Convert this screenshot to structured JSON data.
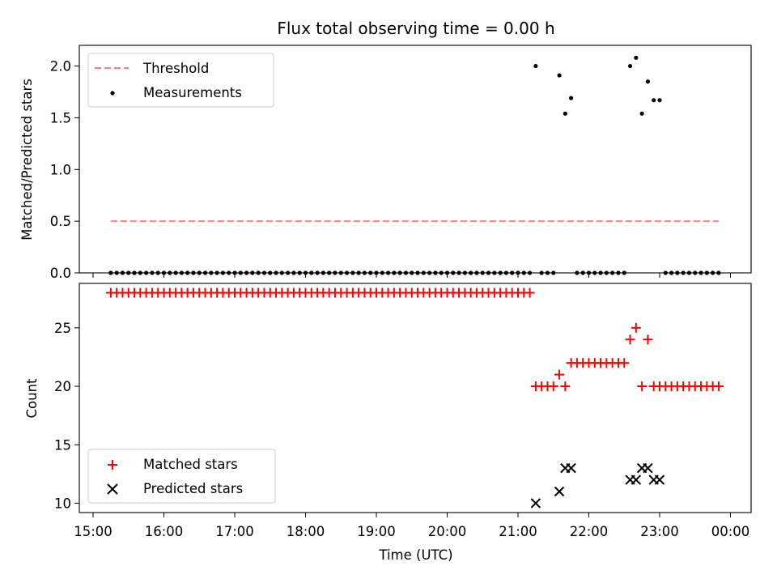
{
  "chart_data": [
    {
      "type": "scatter",
      "panel": "top",
      "title": "Flux total observing time = 0.00 h",
      "ylabel": "Matched/Predicted stars",
      "xlabel": "",
      "ylim": [
        0,
        2.2
      ],
      "yticks": [
        "0.0",
        "0.5",
        "1.0",
        "1.5",
        "2.0"
      ],
      "legend": {
        "placement": "top-left",
        "entries": [
          "Threshold",
          "Measurements"
        ]
      },
      "grid": false,
      "threshold": {
        "name": "Threshold",
        "value": 0.5,
        "x_range": [
          "15:15",
          "23:50"
        ],
        "color": "#ff7f7f",
        "style": "dashed"
      },
      "series": [
        {
          "name": "Measurements",
          "color": "#000000",
          "marker": "dot",
          "points": [
            [
              "15:15",
              0
            ],
            [
              "15:20",
              0
            ],
            [
              "15:25",
              0
            ],
            [
              "15:30",
              0
            ],
            [
              "15:35",
              0
            ],
            [
              "15:40",
              0
            ],
            [
              "15:45",
              0
            ],
            [
              "15:50",
              0
            ],
            [
              "15:55",
              0
            ],
            [
              "16:00",
              0
            ],
            [
              "16:05",
              0
            ],
            [
              "16:10",
              0
            ],
            [
              "16:15",
              0
            ],
            [
              "16:20",
              0
            ],
            [
              "16:25",
              0
            ],
            [
              "16:30",
              0
            ],
            [
              "16:35",
              0
            ],
            [
              "16:40",
              0
            ],
            [
              "16:45",
              0
            ],
            [
              "16:50",
              0
            ],
            [
              "16:55",
              0
            ],
            [
              "17:00",
              0
            ],
            [
              "17:05",
              0
            ],
            [
              "17:10",
              0
            ],
            [
              "17:15",
              0
            ],
            [
              "17:20",
              0
            ],
            [
              "17:25",
              0
            ],
            [
              "17:30",
              0
            ],
            [
              "17:35",
              0
            ],
            [
              "17:40",
              0
            ],
            [
              "17:45",
              0
            ],
            [
              "17:50",
              0
            ],
            [
              "17:55",
              0
            ],
            [
              "18:00",
              0
            ],
            [
              "18:05",
              0
            ],
            [
              "18:10",
              0
            ],
            [
              "18:15",
              0
            ],
            [
              "18:20",
              0
            ],
            [
              "18:25",
              0
            ],
            [
              "18:30",
              0
            ],
            [
              "18:35",
              0
            ],
            [
              "18:40",
              0
            ],
            [
              "18:45",
              0
            ],
            [
              "18:50",
              0
            ],
            [
              "18:55",
              0
            ],
            [
              "19:00",
              0
            ],
            [
              "19:05",
              0
            ],
            [
              "19:10",
              0
            ],
            [
              "19:15",
              0
            ],
            [
              "19:20",
              0
            ],
            [
              "19:25",
              0
            ],
            [
              "19:30",
              0
            ],
            [
              "19:35",
              0
            ],
            [
              "19:40",
              0
            ],
            [
              "19:45",
              0
            ],
            [
              "19:50",
              0
            ],
            [
              "19:55",
              0
            ],
            [
              "20:00",
              0
            ],
            [
              "20:05",
              0
            ],
            [
              "20:10",
              0
            ],
            [
              "20:15",
              0
            ],
            [
              "20:20",
              0
            ],
            [
              "20:25",
              0
            ],
            [
              "20:30",
              0
            ],
            [
              "20:35",
              0
            ],
            [
              "20:40",
              0
            ],
            [
              "20:45",
              0
            ],
            [
              "20:50",
              0
            ],
            [
              "20:55",
              0
            ],
            [
              "21:00",
              0
            ],
            [
              "21:05",
              0
            ],
            [
              "21:10",
              0
            ],
            [
              "21:15",
              2.0
            ],
            [
              "21:20",
              0
            ],
            [
              "21:25",
              0
            ],
            [
              "21:30",
              0
            ],
            [
              "21:35",
              1.91
            ],
            [
              "21:40",
              1.54
            ],
            [
              "21:45",
              1.69
            ],
            [
              "21:50",
              0
            ],
            [
              "21:55",
              0
            ],
            [
              "22:00",
              0
            ],
            [
              "22:05",
              0
            ],
            [
              "22:10",
              0
            ],
            [
              "22:15",
              0
            ],
            [
              "22:20",
              0
            ],
            [
              "22:25",
              0
            ],
            [
              "22:30",
              0
            ],
            [
              "22:35",
              2.0
            ],
            [
              "22:40",
              2.08
            ],
            [
              "22:45",
              1.54
            ],
            [
              "22:50",
              1.85
            ],
            [
              "22:55",
              1.67
            ],
            [
              "23:00",
              1.67
            ],
            [
              "23:05",
              0
            ],
            [
              "23:10",
              0
            ],
            [
              "23:15",
              0
            ],
            [
              "23:20",
              0
            ],
            [
              "23:25",
              0
            ],
            [
              "23:30",
              0
            ],
            [
              "23:35",
              0
            ],
            [
              "23:40",
              0
            ],
            [
              "23:45",
              0
            ],
            [
              "23:50",
              0
            ]
          ]
        }
      ]
    },
    {
      "type": "scatter",
      "panel": "bottom",
      "title": "",
      "ylabel": "Count",
      "xlabel": "Time (UTC)",
      "ylim": [
        9.2,
        28.8
      ],
      "yticks": [
        "10",
        "15",
        "20",
        "25"
      ],
      "xticks": [
        "15:00",
        "16:00",
        "17:00",
        "18:00",
        "19:00",
        "20:00",
        "21:00",
        "22:00",
        "23:00",
        "00:00"
      ],
      "legend": {
        "placement": "bottom-left",
        "entries": [
          "Matched stars",
          "Predicted stars"
        ]
      },
      "grid": false,
      "series": [
        {
          "name": "Matched stars",
          "color": "#ff0000",
          "marker": "plus",
          "points": [
            [
              "15:15",
              28
            ],
            [
              "15:20",
              28
            ],
            [
              "15:25",
              28
            ],
            [
              "15:30",
              28
            ],
            [
              "15:35",
              28
            ],
            [
              "15:40",
              28
            ],
            [
              "15:45",
              28
            ],
            [
              "15:50",
              28
            ],
            [
              "15:55",
              28
            ],
            [
              "16:00",
              28
            ],
            [
              "16:05",
              28
            ],
            [
              "16:10",
              28
            ],
            [
              "16:15",
              28
            ],
            [
              "16:20",
              28
            ],
            [
              "16:25",
              28
            ],
            [
              "16:30",
              28
            ],
            [
              "16:35",
              28
            ],
            [
              "16:40",
              28
            ],
            [
              "16:45",
              28
            ],
            [
              "16:50",
              28
            ],
            [
              "16:55",
              28
            ],
            [
              "17:00",
              28
            ],
            [
              "17:05",
              28
            ],
            [
              "17:10",
              28
            ],
            [
              "17:15",
              28
            ],
            [
              "17:20",
              28
            ],
            [
              "17:25",
              28
            ],
            [
              "17:30",
              28
            ],
            [
              "17:35",
              28
            ],
            [
              "17:40",
              28
            ],
            [
              "17:45",
              28
            ],
            [
              "17:50",
              28
            ],
            [
              "17:55",
              28
            ],
            [
              "18:00",
              28
            ],
            [
              "18:05",
              28
            ],
            [
              "18:10",
              28
            ],
            [
              "18:15",
              28
            ],
            [
              "18:20",
              28
            ],
            [
              "18:25",
              28
            ],
            [
              "18:30",
              28
            ],
            [
              "18:35",
              28
            ],
            [
              "18:40",
              28
            ],
            [
              "18:45",
              28
            ],
            [
              "18:50",
              28
            ],
            [
              "18:55",
              28
            ],
            [
              "19:00",
              28
            ],
            [
              "19:05",
              28
            ],
            [
              "19:10",
              28
            ],
            [
              "19:15",
              28
            ],
            [
              "19:20",
              28
            ],
            [
              "19:25",
              28
            ],
            [
              "19:30",
              28
            ],
            [
              "19:35",
              28
            ],
            [
              "19:40",
              28
            ],
            [
              "19:45",
              28
            ],
            [
              "19:50",
              28
            ],
            [
              "19:55",
              28
            ],
            [
              "20:00",
              28
            ],
            [
              "20:05",
              28
            ],
            [
              "20:10",
              28
            ],
            [
              "20:15",
              28
            ],
            [
              "20:20",
              28
            ],
            [
              "20:25",
              28
            ],
            [
              "20:30",
              28
            ],
            [
              "20:35",
              28
            ],
            [
              "20:40",
              28
            ],
            [
              "20:45",
              28
            ],
            [
              "20:50",
              28
            ],
            [
              "20:55",
              28
            ],
            [
              "21:00",
              28
            ],
            [
              "21:05",
              28
            ],
            [
              "21:10",
              28
            ],
            [
              "21:15",
              20
            ],
            [
              "21:20",
              20
            ],
            [
              "21:25",
              20
            ],
            [
              "21:30",
              20
            ],
            [
              "21:35",
              21
            ],
            [
              "21:40",
              20
            ],
            [
              "21:45",
              22
            ],
            [
              "21:50",
              22
            ],
            [
              "21:55",
              22
            ],
            [
              "22:00",
              22
            ],
            [
              "22:05",
              22
            ],
            [
              "22:10",
              22
            ],
            [
              "22:15",
              22
            ],
            [
              "22:20",
              22
            ],
            [
              "22:25",
              22
            ],
            [
              "22:30",
              22
            ],
            [
              "22:35",
              24
            ],
            [
              "22:40",
              25
            ],
            [
              "22:45",
              20
            ],
            [
              "22:50",
              24
            ],
            [
              "22:55",
              20
            ],
            [
              "23:00",
              20
            ],
            [
              "23:05",
              20
            ],
            [
              "23:10",
              20
            ],
            [
              "23:15",
              20
            ],
            [
              "23:20",
              20
            ],
            [
              "23:25",
              20
            ],
            [
              "23:30",
              20
            ],
            [
              "23:35",
              20
            ],
            [
              "23:40",
              20
            ],
            [
              "23:45",
              20
            ],
            [
              "23:50",
              20
            ]
          ]
        },
        {
          "name": "Predicted stars",
          "color": "#000000",
          "marker": "x",
          "points": [
            [
              "21:15",
              10
            ],
            [
              "21:35",
              11
            ],
            [
              "21:40",
              13
            ],
            [
              "21:45",
              13
            ],
            [
              "22:35",
              12
            ],
            [
              "22:40",
              12
            ],
            [
              "22:45",
              13
            ],
            [
              "22:50",
              13
            ],
            [
              "22:55",
              12
            ],
            [
              "23:00",
              12
            ]
          ]
        }
      ]
    }
  ]
}
